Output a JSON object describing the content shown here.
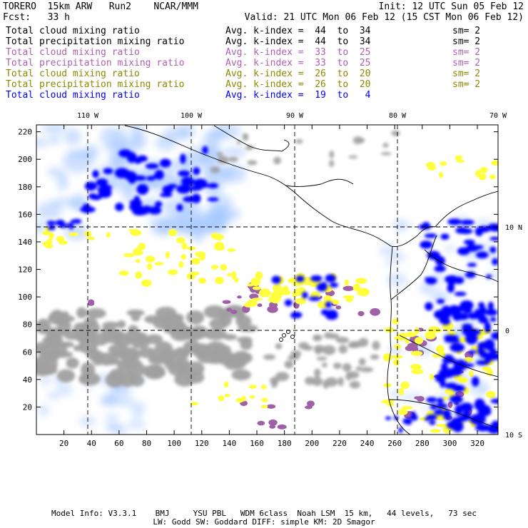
{
  "header": {
    "model_line": "TORERO  15km ARW   Run2    NCAR/MMM",
    "init": "Init: 12 UTC Sun 05 Feb 12",
    "fcst": "Fcst:   33 h",
    "valid": "Valid: 21 UTC Mon 06 Feb 12 (15 CST Mon 06 Feb 12)"
  },
  "legend": [
    {
      "field": "Total cloud mixing ratio",
      "index": "Avg. k-index =  44  to  34",
      "sm": "sm= 2",
      "color": "#000000"
    },
    {
      "field": "Total precipitation mixing ratio",
      "index": "Avg. k-index =  44  to  34",
      "sm": "sm= 2",
      "color": "#000000"
    },
    {
      "field": "Total cloud mixing ratio",
      "index": "Avg. k-index =  33  to  25",
      "sm": "sm= 2",
      "color": "#b060b0"
    },
    {
      "field": "Total precipitation mixing ratio",
      "index": "Avg. k-index =  33  to  25",
      "sm": "sm= 2",
      "color": "#b060b0"
    },
    {
      "field": "Total cloud mixing ratio",
      "index": "Avg. k-index =  26  to  20",
      "sm": "sm= 2",
      "color": "#8a8a00"
    },
    {
      "field": "Total precipitation mixing ratio",
      "index": "Avg. k-index =  26  to  20",
      "sm": "sm= 2",
      "color": "#8a8a00"
    },
    {
      "field": "Total cloud mixing ratio",
      "index": "Avg. k-index =  19  to   4",
      "sm": "",
      "color": "#0000ff"
    }
  ],
  "map": {
    "lon_labels": [
      "110 W",
      "100 W",
      "90 W",
      "80 W",
      "70 W"
    ],
    "lat_labels": [
      "10 N",
      "0",
      "10 S"
    ],
    "x_ticks": [
      "20",
      "40",
      "60",
      "80",
      "100",
      "120",
      "140",
      "160",
      "180",
      "200",
      "220",
      "240",
      "260",
      "280",
      "300",
      "320"
    ],
    "y_ticks": [
      "20",
      "40",
      "60",
      "80",
      "100",
      "120",
      "140",
      "160",
      "180",
      "200",
      "220"
    ],
    "colors": {
      "grey": "#a0a0a0",
      "purple": "#a060a8",
      "yellow": "#ffff40",
      "blue": "#0000ff",
      "lightblue": "#a8c8ff",
      "coast": "#000000"
    }
  },
  "footer": {
    "line1": "Model Info: V3.3.1    BMJ     YSU PBL   WDM 6class  Noah LSM  15 km,   44 levels,   73 sec",
    "line2": "LW: Godd SW: Goddard DIFF: simple KM: 2D Smagor"
  }
}
